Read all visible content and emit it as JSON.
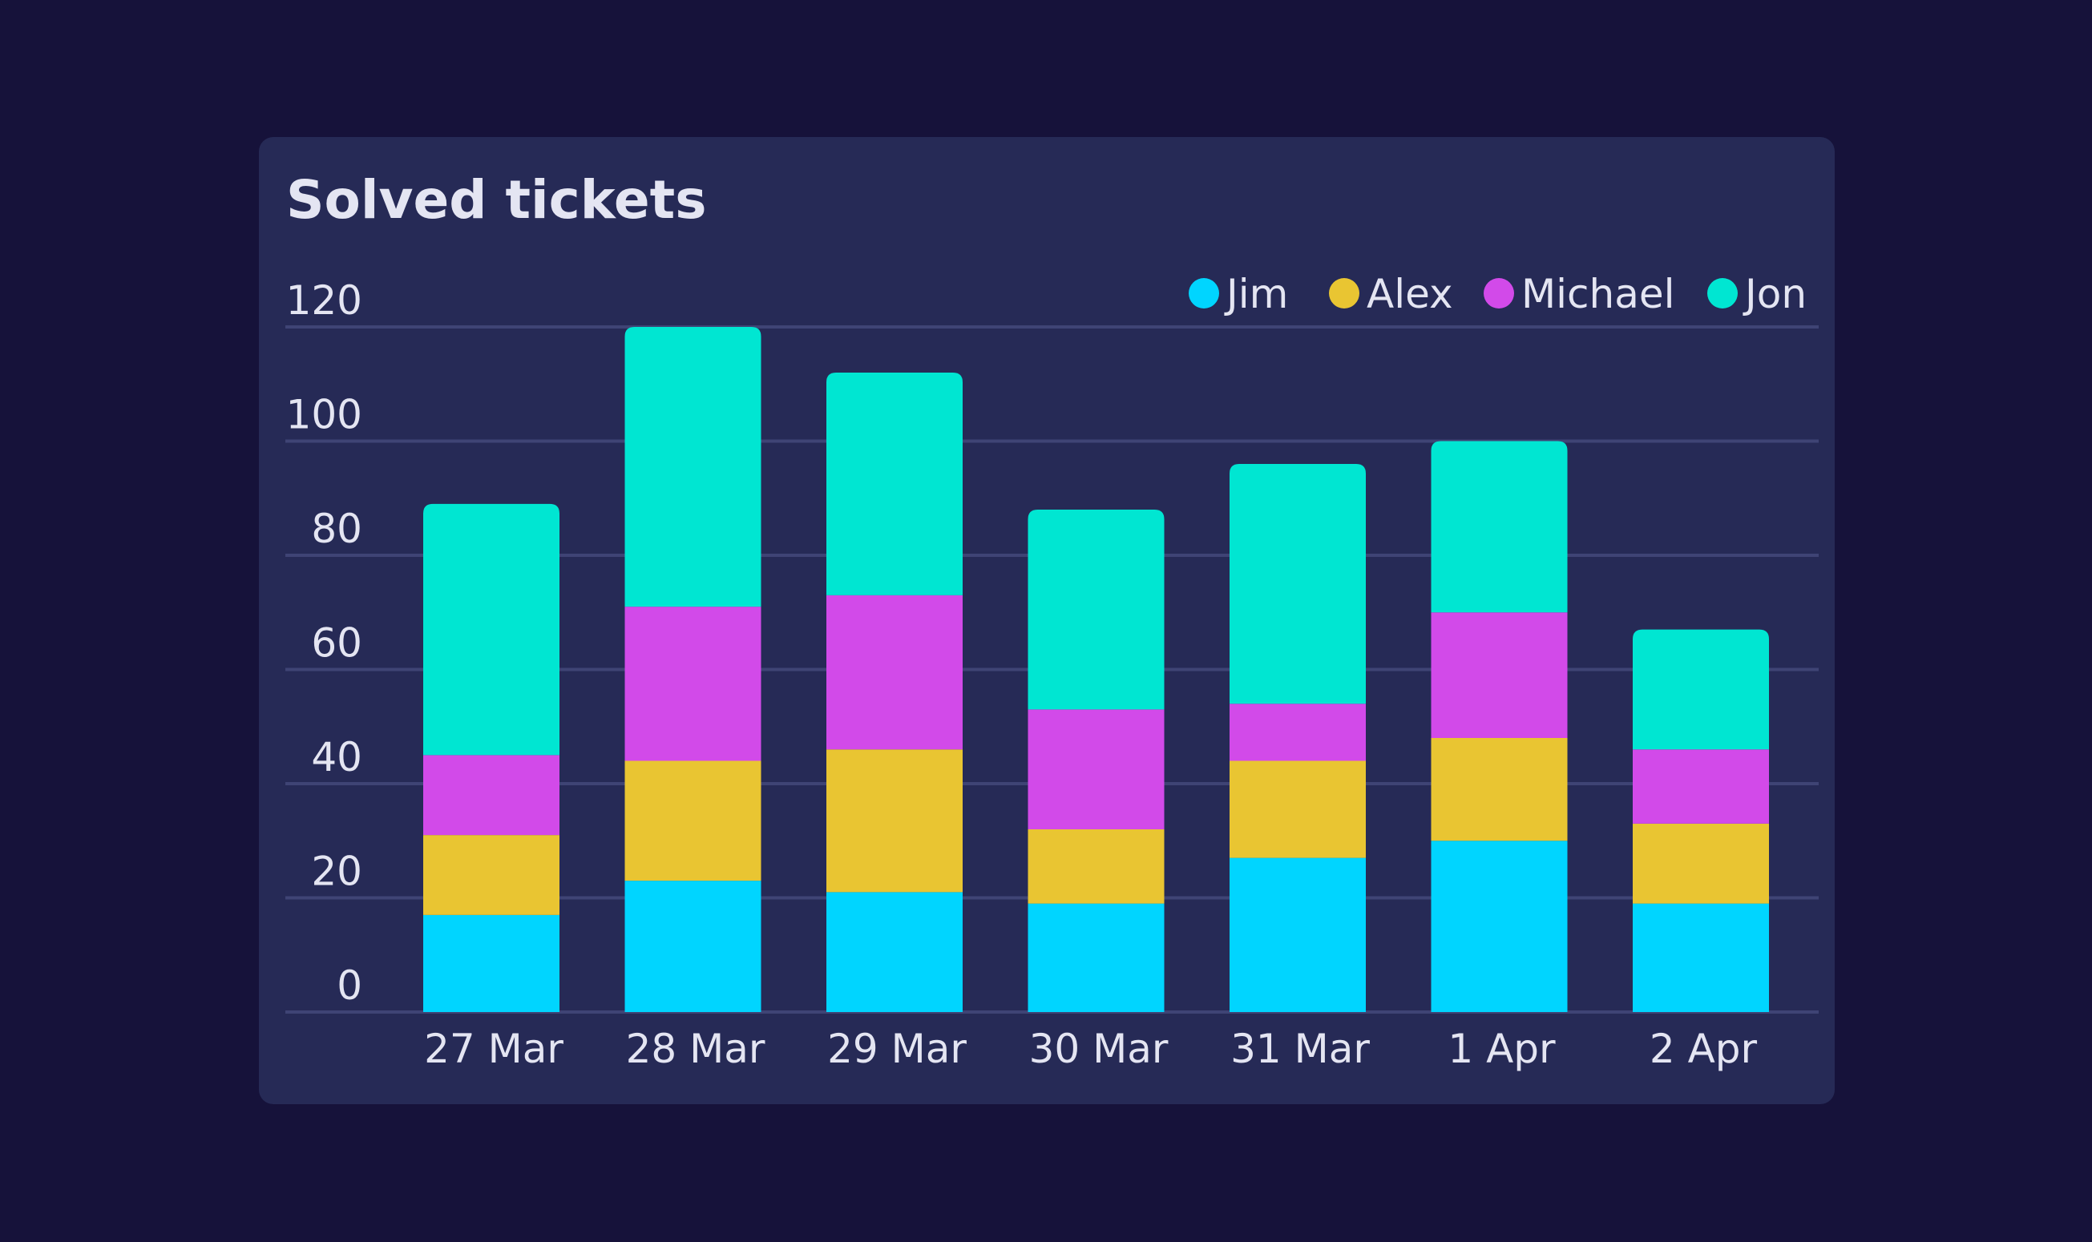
{
  "chart_data": {
    "type": "bar",
    "stacked": true,
    "title": "Solved tickets",
    "xlabel": "",
    "ylabel": "",
    "categories": [
      "27 Mar",
      "28 Mar",
      "29 Mar",
      "30 Mar",
      "31 Mar",
      "1 Apr",
      "2 Apr"
    ],
    "ylim": [
      0,
      120
    ],
    "yticks": [
      0,
      20,
      40,
      60,
      80,
      100,
      120
    ],
    "grid": true,
    "legend_position": "top-right",
    "series": [
      {
        "name": "Jim",
        "color": "#00d5ff",
        "values": [
          17,
          23,
          21,
          19,
          27,
          30,
          19
        ]
      },
      {
        "name": "Alex",
        "color": "#e9c532",
        "values": [
          14,
          21,
          25,
          13,
          17,
          18,
          14
        ]
      },
      {
        "name": "Michael",
        "color": "#d24ae9",
        "values": [
          14,
          27,
          27,
          21,
          10,
          22,
          13
        ]
      },
      {
        "name": "Jon",
        "color": "#00e6d2",
        "values": [
          44,
          49,
          39,
          35,
          42,
          30,
          21
        ]
      }
    ]
  },
  "colors": {
    "background": "#16123a",
    "card": "#262a56",
    "grid": "#3f4475",
    "text": "#e4e5f2"
  }
}
